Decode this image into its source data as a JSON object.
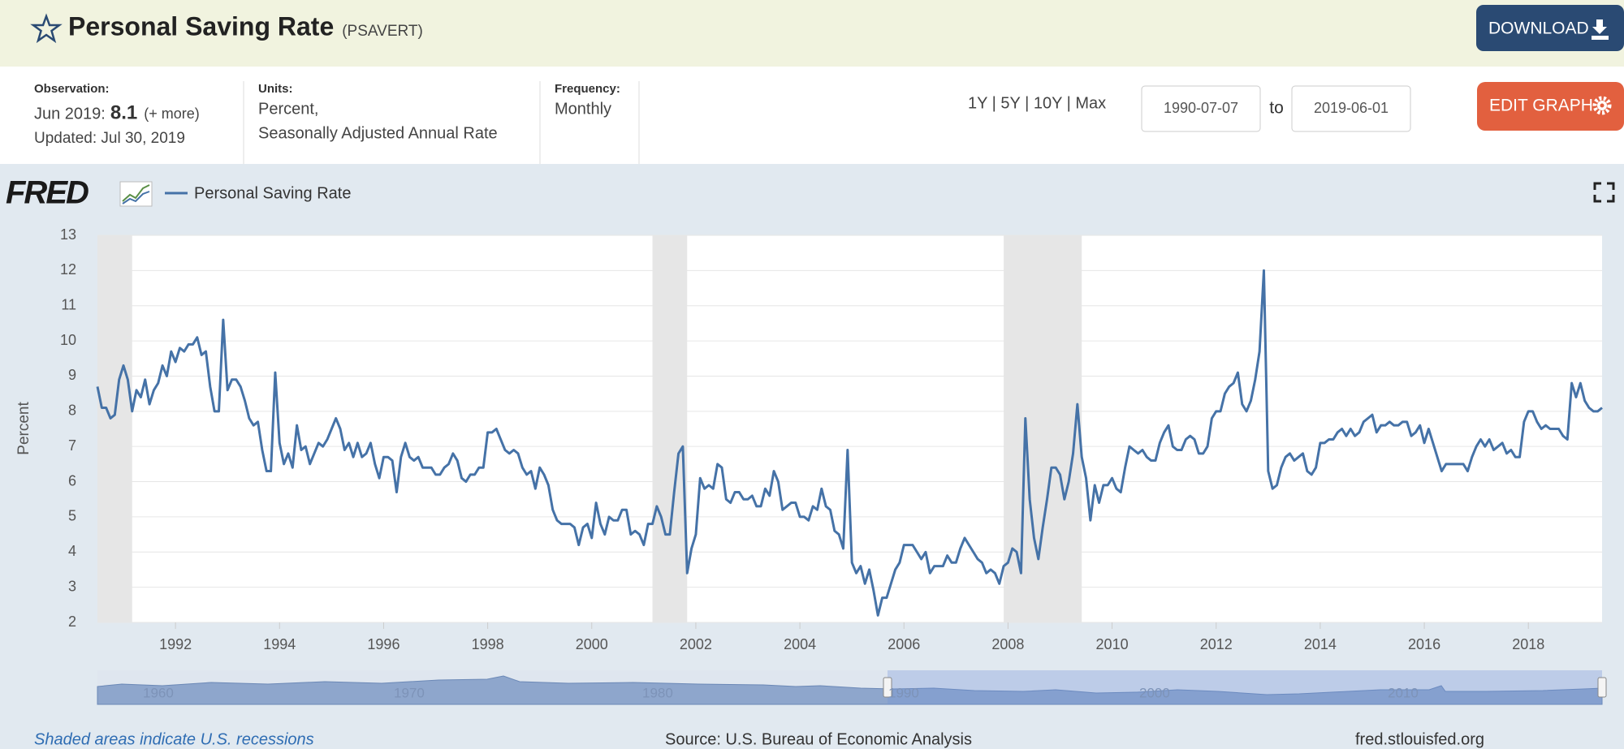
{
  "header": {
    "title": "Personal Saving Rate",
    "series_id": "(PSAVERT)",
    "download": "DOWNLOAD"
  },
  "info": {
    "observation_label": "Observation:",
    "observation_date": "Jun 2019:",
    "observation_value": "8.1",
    "more": "(+ more)",
    "updated": "Updated: Jul 30, 2019",
    "units_label": "Units:",
    "units": [
      "Percent,",
      "Seasonally Adjusted Annual Rate"
    ],
    "frequency_label": "Frequency:",
    "frequency": "Monthly"
  },
  "controls": {
    "ranges": "1Y | 5Y | 10Y | Max",
    "start": "1990-07-07",
    "to": "to",
    "end": "2019-06-01",
    "edit": "EDIT GRAPH"
  },
  "chart_data": {
    "type": "line",
    "logo": "FRED",
    "ylabel": "Percent",
    "x": [
      "1990-07",
      "1990-08",
      "1990-09",
      "1990-10",
      "1990-11",
      "1990-12",
      "1991-01",
      "1991-02",
      "1991-03",
      "1991-04",
      "1991-05",
      "1991-06",
      "1991-07",
      "1991-08",
      "1991-09",
      "1991-10",
      "1991-11",
      "1991-12",
      "1992-01",
      "1992-02",
      "1992-03",
      "1992-04",
      "1992-05",
      "1992-06",
      "1992-07",
      "1992-08",
      "1992-09",
      "1992-10",
      "1992-11",
      "1992-12",
      "1993-01",
      "1993-02",
      "1993-03",
      "1993-04",
      "1993-05",
      "1993-06",
      "1993-07",
      "1993-08",
      "1993-09",
      "1993-10",
      "1993-11",
      "1993-12",
      "1994-01",
      "1994-02",
      "1994-03",
      "1994-04",
      "1994-05",
      "1994-06",
      "1994-07",
      "1994-08",
      "1994-09",
      "1994-10",
      "1994-11",
      "1994-12",
      "1995-01",
      "1995-02",
      "1995-03",
      "1995-04",
      "1995-05",
      "1995-06",
      "1995-07",
      "1995-08",
      "1995-09",
      "1995-10",
      "1995-11",
      "1995-12",
      "1996-01",
      "1996-02",
      "1996-03",
      "1996-04",
      "1996-05",
      "1996-06",
      "1996-07",
      "1996-08",
      "1996-09",
      "1996-10",
      "1996-11",
      "1996-12",
      "1997-01",
      "1997-02",
      "1997-03",
      "1997-04",
      "1997-05",
      "1997-06",
      "1997-07",
      "1997-08",
      "1997-09",
      "1997-10",
      "1997-11",
      "1997-12",
      "1998-01",
      "1998-02",
      "1998-03",
      "1998-04",
      "1998-05",
      "1998-06",
      "1998-07",
      "1998-08",
      "1998-09",
      "1998-10",
      "1998-11",
      "1998-12",
      "1999-01",
      "1999-02",
      "1999-03",
      "1999-04",
      "1999-05",
      "1999-06",
      "1999-07",
      "1999-08",
      "1999-09",
      "1999-10",
      "1999-11",
      "1999-12",
      "2000-01",
      "2000-02",
      "2000-03",
      "2000-04",
      "2000-05",
      "2000-06",
      "2000-07",
      "2000-08",
      "2000-09",
      "2000-10",
      "2000-11",
      "2000-12",
      "2001-01",
      "2001-02",
      "2001-03",
      "2001-04",
      "2001-05",
      "2001-06",
      "2001-07",
      "2001-08",
      "2001-09",
      "2001-10",
      "2001-11",
      "2001-12",
      "2002-01",
      "2002-02",
      "2002-03",
      "2002-04",
      "2002-05",
      "2002-06",
      "2002-07",
      "2002-08",
      "2002-09",
      "2002-10",
      "2002-11",
      "2002-12",
      "2003-01",
      "2003-02",
      "2003-03",
      "2003-04",
      "2003-05",
      "2003-06",
      "2003-07",
      "2003-08",
      "2003-09",
      "2003-10",
      "2003-11",
      "2003-12",
      "2004-01",
      "2004-02",
      "2004-03",
      "2004-04",
      "2004-05",
      "2004-06",
      "2004-07",
      "2004-08",
      "2004-09",
      "2004-10",
      "2004-11",
      "2004-12",
      "2005-01",
      "2005-02",
      "2005-03",
      "2005-04",
      "2005-05",
      "2005-06",
      "2005-07",
      "2005-08",
      "2005-09",
      "2005-10",
      "2005-11",
      "2005-12",
      "2006-01",
      "2006-02",
      "2006-03",
      "2006-04",
      "2006-05",
      "2006-06",
      "2006-07",
      "2006-08",
      "2006-09",
      "2006-10",
      "2006-11",
      "2006-12",
      "2007-01",
      "2007-02",
      "2007-03",
      "2007-04",
      "2007-05",
      "2007-06",
      "2007-07",
      "2007-08",
      "2007-09",
      "2007-10",
      "2007-11",
      "2007-12",
      "2008-01",
      "2008-02",
      "2008-03",
      "2008-04",
      "2008-05",
      "2008-06",
      "2008-07",
      "2008-08",
      "2008-09",
      "2008-10",
      "2008-11",
      "2008-12",
      "2009-01",
      "2009-02",
      "2009-03",
      "2009-04",
      "2009-05",
      "2009-06",
      "2009-07",
      "2009-08",
      "2009-09",
      "2009-10",
      "2009-11",
      "2009-12",
      "2010-01",
      "2010-02",
      "2010-03",
      "2010-04",
      "2010-05",
      "2010-06",
      "2010-07",
      "2010-08",
      "2010-09",
      "2010-10",
      "2010-11",
      "2010-12",
      "2011-01",
      "2011-02",
      "2011-03",
      "2011-04",
      "2011-05",
      "2011-06",
      "2011-07",
      "2011-08",
      "2011-09",
      "2011-10",
      "2011-11",
      "2011-12",
      "2012-01",
      "2012-02",
      "2012-03",
      "2012-04",
      "2012-05",
      "2012-06",
      "2012-07",
      "2012-08",
      "2012-09",
      "2012-10",
      "2012-11",
      "2012-12",
      "2013-01",
      "2013-02",
      "2013-03",
      "2013-04",
      "2013-05",
      "2013-06",
      "2013-07",
      "2013-08",
      "2013-09",
      "2013-10",
      "2013-11",
      "2013-12",
      "2014-01",
      "2014-02",
      "2014-03",
      "2014-04",
      "2014-05",
      "2014-06",
      "2014-07",
      "2014-08",
      "2014-09",
      "2014-10",
      "2014-11",
      "2014-12",
      "2015-01",
      "2015-02",
      "2015-03",
      "2015-04",
      "2015-05",
      "2015-06",
      "2015-07",
      "2015-08",
      "2015-09",
      "2015-10",
      "2015-11",
      "2015-12",
      "2016-01",
      "2016-02",
      "2016-03",
      "2016-04",
      "2016-05",
      "2016-06",
      "2016-07",
      "2016-08",
      "2016-09",
      "2016-10",
      "2016-11",
      "2016-12",
      "2017-01",
      "2017-02",
      "2017-03",
      "2017-04",
      "2017-05",
      "2017-06",
      "2017-07",
      "2017-08",
      "2017-09",
      "2017-10",
      "2017-11",
      "2017-12",
      "2018-01",
      "2018-02",
      "2018-03",
      "2018-04",
      "2018-05",
      "2018-06",
      "2018-07",
      "2018-08",
      "2018-09",
      "2018-10",
      "2018-11",
      "2018-12",
      "2019-01",
      "2019-02",
      "2019-03",
      "2019-04",
      "2019-05",
      "2019-06"
    ],
    "series": [
      {
        "name": "Personal Saving Rate",
        "color": "#4572a7",
        "values": [
          8.7,
          8.1,
          8.1,
          7.8,
          7.9,
          8.9,
          9.3,
          8.9,
          8.0,
          8.6,
          8.4,
          8.9,
          8.2,
          8.6,
          8.8,
          9.3,
          9.0,
          9.7,
          9.4,
          9.8,
          9.7,
          9.9,
          9.9,
          10.1,
          9.6,
          9.7,
          8.7,
          8.0,
          8.0,
          10.6,
          8.6,
          8.9,
          8.9,
          8.7,
          8.3,
          7.8,
          7.6,
          7.7,
          6.9,
          6.3,
          6.3,
          9.1,
          7.1,
          6.5,
          6.8,
          6.4,
          7.6,
          6.9,
          7.0,
          6.5,
          6.8,
          7.1,
          7.0,
          7.2,
          7.5,
          7.8,
          7.5,
          6.9,
          7.1,
          6.7,
          7.1,
          6.7,
          6.8,
          7.1,
          6.5,
          6.1,
          6.7,
          6.7,
          6.6,
          5.7,
          6.7,
          7.1,
          6.7,
          6.6,
          6.7,
          6.4,
          6.4,
          6.4,
          6.2,
          6.2,
          6.4,
          6.5,
          6.8,
          6.6,
          6.1,
          6.0,
          6.2,
          6.2,
          6.4,
          6.4,
          7.4,
          7.4,
          7.5,
          7.2,
          6.9,
          6.8,
          6.9,
          6.8,
          6.4,
          6.2,
          6.3,
          5.8,
          6.4,
          6.2,
          5.9,
          5.2,
          4.9,
          4.8,
          4.8,
          4.8,
          4.7,
          4.2,
          4.7,
          4.8,
          4.4,
          5.4,
          4.8,
          4.5,
          5.0,
          4.9,
          4.9,
          5.2,
          5.2,
          4.5,
          4.6,
          4.5,
          4.2,
          4.8,
          4.8,
          5.3,
          5.0,
          4.5,
          4.5,
          5.7,
          6.8,
          7.0,
          3.4,
          4.1,
          4.5,
          6.1,
          5.8,
          5.9,
          5.8,
          6.5,
          6.4,
          5.5,
          5.4,
          5.7,
          5.7,
          5.5,
          5.5,
          5.6,
          5.3,
          5.3,
          5.8,
          5.6,
          6.3,
          6.0,
          5.2,
          5.3,
          5.4,
          5.4,
          5.0,
          5.0,
          4.9,
          5.3,
          5.2,
          5.8,
          5.3,
          5.2,
          4.6,
          4.5,
          4.1,
          6.9,
          3.7,
          3.4,
          3.6,
          3.1,
          3.5,
          2.9,
          2.2,
          2.7,
          2.7,
          3.1,
          3.5,
          3.7,
          4.2,
          4.2,
          4.2,
          4.0,
          3.8,
          4.0,
          3.4,
          3.6,
          3.6,
          3.6,
          3.9,
          3.7,
          3.7,
          4.1,
          4.4,
          4.2,
          4.0,
          3.8,
          3.7,
          3.4,
          3.5,
          3.4,
          3.1,
          3.6,
          3.7,
          4.1,
          4.0,
          3.4,
          7.8,
          5.5,
          4.4,
          3.8,
          4.7,
          5.5,
          6.4,
          6.4,
          6.2,
          5.5,
          6.0,
          6.8,
          8.2,
          6.7,
          6.1,
          4.9,
          5.9,
          5.4,
          5.9,
          5.9,
          6.1,
          5.8,
          5.7,
          6.4,
          7.0,
          6.9,
          6.8,
          6.9,
          6.7,
          6.6,
          6.6,
          7.1,
          7.4,
          7.6,
          7.0,
          6.9,
          6.9,
          7.2,
          7.3,
          7.2,
          6.8,
          6.8,
          7.0,
          7.8,
          8.0,
          8.0,
          8.5,
          8.7,
          8.8,
          9.1,
          8.2,
          8.0,
          8.3,
          8.9,
          9.7,
          12.0,
          6.3,
          5.8,
          5.9,
          6.4,
          6.7,
          6.8,
          6.6,
          6.7,
          6.8,
          6.3,
          6.2,
          6.4,
          7.1,
          7.1,
          7.2,
          7.2,
          7.4,
          7.5,
          7.3,
          7.5,
          7.3,
          7.4,
          7.7,
          7.8,
          7.9,
          7.4,
          7.6,
          7.6,
          7.7,
          7.6,
          7.6,
          7.7,
          7.7,
          7.3,
          7.4,
          7.6,
          7.1,
          7.5,
          7.1,
          6.7,
          6.3,
          6.5,
          6.5,
          6.5,
          6.5,
          6.5,
          6.3,
          6.7,
          7.0,
          7.2,
          7.0,
          7.2,
          6.9,
          7.0,
          7.1,
          6.8,
          6.9,
          6.7,
          6.7,
          7.7,
          8.0,
          8.0,
          7.7,
          7.5,
          7.6,
          7.5,
          7.5,
          7.5,
          7.3,
          7.2,
          8.8,
          8.4,
          8.8,
          8.3,
          8.1,
          8.0,
          8.0,
          8.1
        ]
      }
    ],
    "xlim": [
      "1990-07",
      "2019-06"
    ],
    "xticks": [
      1992,
      1994,
      1996,
      1998,
      2000,
      2002,
      2004,
      2006,
      2008,
      2010,
      2012,
      2014,
      2016,
      2018
    ],
    "ylim": [
      2,
      13
    ],
    "yticks": [
      2,
      3,
      4,
      5,
      6,
      7,
      8,
      9,
      10,
      11,
      12,
      13
    ],
    "grid": true,
    "recessions": [
      [
        "1990-07",
        "1991-03"
      ],
      [
        "2001-03",
        "2001-11"
      ],
      [
        "2007-12",
        "2009-06"
      ]
    ],
    "navigator": {
      "labels": [
        "1960",
        "1970",
        "1980",
        "1990",
        "2000",
        "2010"
      ]
    }
  },
  "footer": {
    "note": "Shaded areas indicate U.S. recessions",
    "source": "Source: U.S. Bureau of Economic Analysis",
    "site": "fred.stlouisfed.org"
  }
}
